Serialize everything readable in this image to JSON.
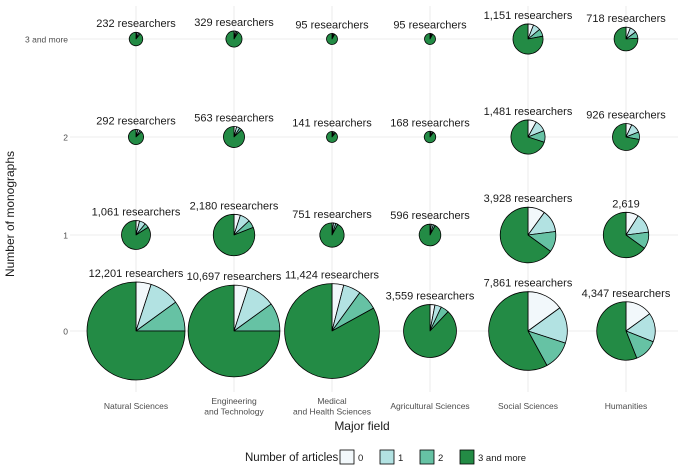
{
  "chart_data": {
    "type": "pie",
    "xlabel": "Major field",
    "ylabel": "Number of monographs",
    "grid": true,
    "columns": [
      {
        "label": "Natural Sciences"
      },
      {
        "label": "Engineering\nand Technology"
      },
      {
        "label": "Medical\nand Health Sciences"
      },
      {
        "label": "Agricultural Sciences"
      },
      {
        "label": "Social Sciences"
      },
      {
        "label": "Humanities"
      }
    ],
    "rows": [
      "3 and more",
      "2",
      "1",
      "0"
    ],
    "legend": {
      "title": "Number of articles",
      "position": "bottom",
      "items": [
        {
          "label": "0",
          "color": "#f2f8fb"
        },
        {
          "label": "1",
          "color": "#b2e2e2"
        },
        {
          "label": "2",
          "color": "#66c2a4"
        },
        {
          "label": "3 and more",
          "color": "#238b45"
        }
      ]
    },
    "cells": [
      {
        "col": 0,
        "row": "3 and more",
        "label": "232 researchers",
        "count": 232,
        "shares": [
          0.03,
          0.04,
          0.04,
          0.89
        ]
      },
      {
        "col": 1,
        "row": "3 and more",
        "label": "329 researchers",
        "count": 329,
        "shares": [
          0.03,
          0.03,
          0.03,
          0.91
        ]
      },
      {
        "col": 2,
        "row": "3 and more",
        "label": "95 researchers",
        "count": 95,
        "shares": [
          0.02,
          0.03,
          0.03,
          0.92
        ]
      },
      {
        "col": 3,
        "row": "3 and more",
        "label": "95 researchers",
        "count": 95,
        "shares": [
          0.02,
          0.03,
          0.03,
          0.92
        ]
      },
      {
        "col": 4,
        "row": "3 and more",
        "label": "1,151 researchers",
        "count": 1151,
        "shares": [
          0.06,
          0.08,
          0.08,
          0.78
        ]
      },
      {
        "col": 5,
        "row": "3 and more",
        "label": "718 researchers",
        "count": 718,
        "shares": [
          0.06,
          0.09,
          0.09,
          0.76
        ]
      },
      {
        "col": 0,
        "row": "2",
        "label": "292 researchers",
        "count": 292,
        "shares": [
          0.04,
          0.05,
          0.04,
          0.87
        ]
      },
      {
        "col": 1,
        "row": "2",
        "label": "563 researchers",
        "count": 563,
        "shares": [
          0.04,
          0.05,
          0.04,
          0.87
        ]
      },
      {
        "col": 2,
        "row": "2",
        "label": "141 researchers",
        "count": 141,
        "shares": [
          0.03,
          0.04,
          0.04,
          0.89
        ]
      },
      {
        "col": 3,
        "row": "2",
        "label": "168 researchers",
        "count": 168,
        "shares": [
          0.03,
          0.04,
          0.03,
          0.9
        ]
      },
      {
        "col": 4,
        "row": "2",
        "label": "1,481 researchers",
        "count": 1481,
        "shares": [
          0.08,
          0.11,
          0.11,
          0.7
        ]
      },
      {
        "col": 5,
        "row": "2",
        "label": "926 researchers",
        "count": 926,
        "shares": [
          0.07,
          0.12,
          0.09,
          0.72
        ]
      },
      {
        "col": 0,
        "row": "1",
        "label": "1,061 researchers",
        "count": 1061,
        "shares": [
          0.04,
          0.07,
          0.05,
          0.84
        ]
      },
      {
        "col": 1,
        "row": "1",
        "label": "2,180 researchers",
        "count": 2180,
        "shares": [
          0.05,
          0.08,
          0.06,
          0.81
        ]
      },
      {
        "col": 2,
        "row": "1",
        "label": "751 researchers",
        "count": 751,
        "shares": [
          0.02,
          0.03,
          0.03,
          0.92
        ]
      },
      {
        "col": 3,
        "row": "1",
        "label": "596 researchers",
        "count": 596,
        "shares": [
          0.02,
          0.03,
          0.03,
          0.92
        ]
      },
      {
        "col": 4,
        "row": "1",
        "label": "3,928 researchers",
        "count": 3928,
        "shares": [
          0.1,
          0.13,
          0.12,
          0.65
        ]
      },
      {
        "col": 5,
        "row": "1",
        "label": "2,619",
        "count": 2619,
        "shares": [
          0.09,
          0.14,
          0.12,
          0.65
        ]
      },
      {
        "col": 0,
        "row": "0",
        "label": "12,201 researchers",
        "count": 12201,
        "shares": [
          0.05,
          0.1,
          0.1,
          0.75
        ]
      },
      {
        "col": 1,
        "row": "0",
        "label": "10,697 researchers",
        "count": 10697,
        "shares": [
          0.05,
          0.1,
          0.1,
          0.75
        ]
      },
      {
        "col": 2,
        "row": "0",
        "label": "11,424 researchers",
        "count": 11424,
        "shares": [
          0.04,
          0.06,
          0.07,
          0.83
        ]
      },
      {
        "col": 3,
        "row": "0",
        "label": "3,559 researchers",
        "count": 3559,
        "shares": [
          0.03,
          0.04,
          0.05,
          0.88
        ]
      },
      {
        "col": 4,
        "row": "0",
        "label": "7,861 researchers",
        "count": 7861,
        "shares": [
          0.15,
          0.15,
          0.12,
          0.58
        ]
      },
      {
        "col": 5,
        "row": "0",
        "label": "4,347 researchers",
        "count": 4347,
        "shares": [
          0.15,
          0.16,
          0.13,
          0.56
        ]
      }
    ]
  }
}
